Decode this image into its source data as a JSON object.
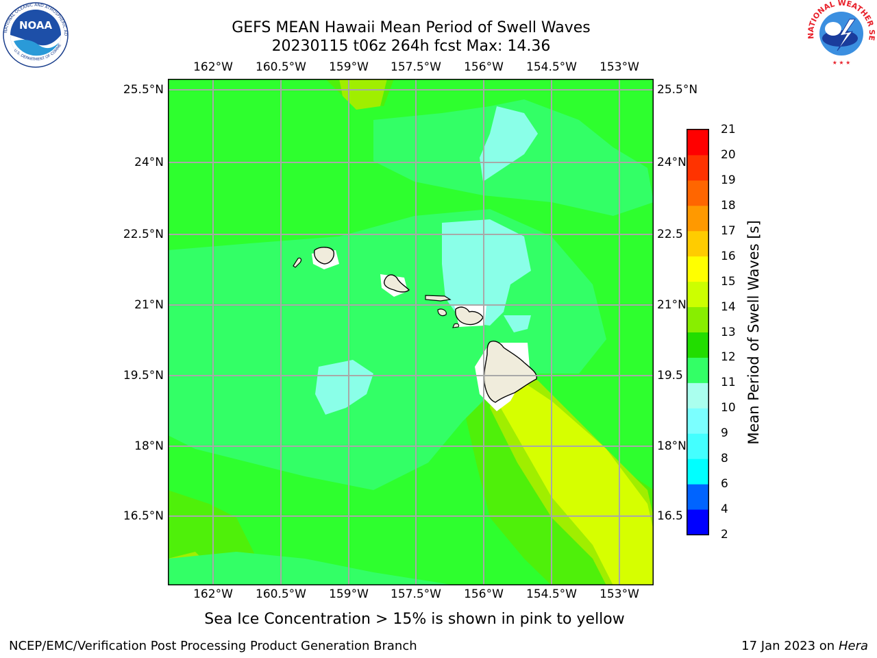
{
  "title": {
    "line1": "GEFS MEAN Hawaii Mean Period of Swell Waves",
    "line2": "20230115 t06z 264h fcst   Max: 14.36"
  },
  "axes": {
    "lon_ticks": [
      "162°W",
      "160.5°W",
      "159°W",
      "157.5°W",
      "156°W",
      "154.5°W",
      "153°W"
    ],
    "lat_ticks": [
      "25.5°N",
      "24°N",
      "22.5°N",
      "21°N",
      "19.5°N",
      "18°N",
      "16.5°N"
    ],
    "lat_ticks_right": [
      "25.5°N",
      "24°N",
      "22.5",
      "21°N",
      "19.5",
      "18°N",
      "16.5"
    ],
    "lon_range": [
      -163.0,
      -152.7
    ],
    "lat_range": [
      15.0,
      25.75
    ],
    "grid": true
  },
  "colorbar": {
    "title": "Mean Period of Swell Waves [s]",
    "levels": [
      "2",
      "4",
      "6",
      "8",
      "9",
      "10",
      "11",
      "12",
      "13",
      "14",
      "15",
      "16",
      "17",
      "18",
      "19",
      "20",
      "21"
    ],
    "colors": [
      "#0000ff",
      "#0064ff",
      "#00ffff",
      "#44ffff",
      "#7bffff",
      "#aaffee",
      "#33ff66",
      "#22dd00",
      "#88ee00",
      "#ccff00",
      "#ffff00",
      "#ffcc00",
      "#ff9900",
      "#ff6600",
      "#ff3300",
      "#ff0000"
    ]
  },
  "map": {
    "land_color": "#f0ecdc",
    "dominant_color": "#33ff33"
  },
  "logos": {
    "noaa_text": "NOAA",
    "noaa_ring_text": "NATIONAL OCEANIC AND ATMOSPHERIC ADMINISTRATION",
    "noaa_bottom_text": "U.S. DEPARTMENT OF COMMERCE",
    "nws_ring_text": "NATIONAL WEATHER SERVICE"
  },
  "footer": {
    "subtitle": "Sea Ice Concentration > 15% is shown in pink to yellow",
    "left": "NCEP/EMC/Verification Post Processing Product Generation Branch",
    "date": "17 Jan 2023 on ",
    "host": "Hera"
  }
}
